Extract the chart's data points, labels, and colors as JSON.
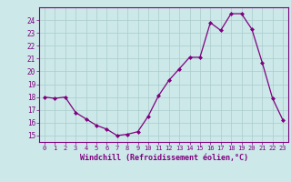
{
  "x": [
    0,
    1,
    2,
    3,
    4,
    5,
    6,
    7,
    8,
    9,
    10,
    11,
    12,
    13,
    14,
    15,
    16,
    17,
    18,
    19,
    20,
    21,
    22,
    23
  ],
  "y": [
    18.0,
    17.9,
    18.0,
    16.8,
    16.3,
    15.8,
    15.5,
    15.0,
    15.1,
    15.3,
    16.5,
    18.1,
    19.3,
    20.2,
    21.1,
    21.1,
    23.8,
    23.2,
    24.5,
    24.5,
    23.3,
    20.7,
    17.9,
    16.2
  ],
  "line_color": "#800080",
  "marker": "D",
  "marker_size": 2.0,
  "bg_color": "#cce8e8",
  "grid_color": "#aacccc",
  "xlabel": "Windchill (Refroidissement éolien,°C)",
  "xlabel_color": "#800080",
  "tick_color": "#800080",
  "xlim": [
    -0.5,
    23.5
  ],
  "ylim": [
    14.5,
    25.0
  ],
  "yticks": [
    15,
    16,
    17,
    18,
    19,
    20,
    21,
    22,
    23,
    24
  ],
  "xticks": [
    0,
    1,
    2,
    3,
    4,
    5,
    6,
    7,
    8,
    9,
    10,
    11,
    12,
    13,
    14,
    15,
    16,
    17,
    18,
    19,
    20,
    21,
    22,
    23
  ]
}
